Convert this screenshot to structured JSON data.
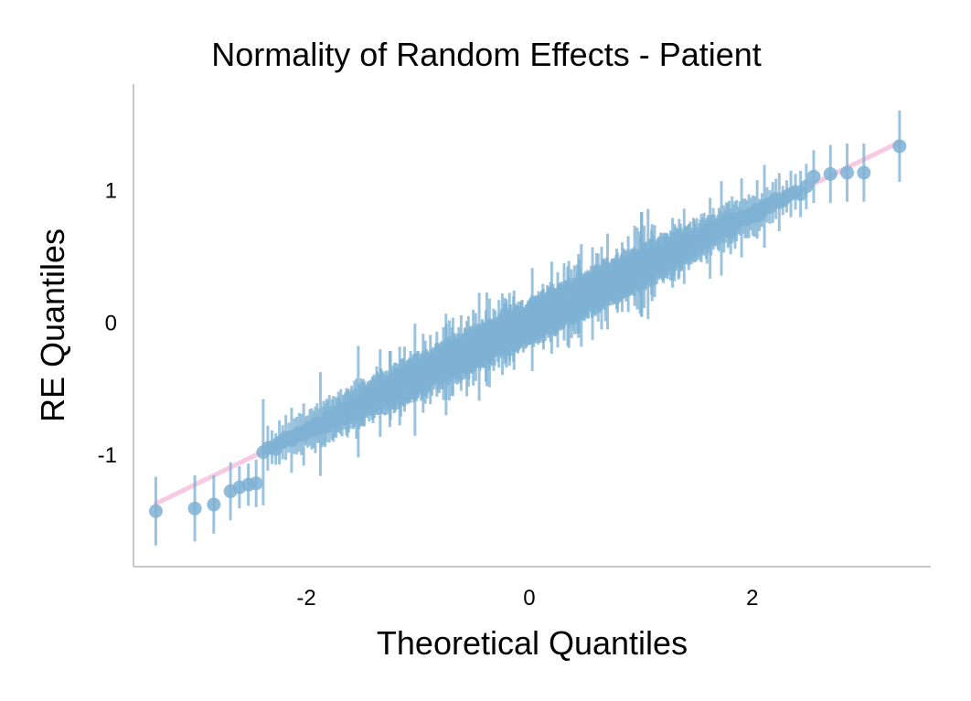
{
  "chart_data": {
    "type": "scatter",
    "title": "Normality of Random Effects - Patient",
    "xlabel": "Theoretical Quantiles",
    "ylabel": "RE Quantiles",
    "xlim": [
      -3.55,
      3.6
    ],
    "ylim": [
      -1.85,
      1.8
    ],
    "xticks": [
      -2,
      0,
      2
    ],
    "xtick_labels": [
      "-2",
      "0",
      "2"
    ],
    "yticks": [
      -1,
      0,
      1
    ],
    "ytick_labels": [
      "-1",
      "0",
      "1"
    ],
    "grid": false,
    "colors": {
      "points": "#7fb2d4",
      "errorbars": "#7fb2d4",
      "reference_line": "#f9c8e2",
      "axis": "#c8c8c8"
    },
    "reference_line": {
      "slope": 0.41,
      "intercept": 0.0,
      "x_range": [
        -3.35,
        3.32
      ]
    },
    "n_points": 1000,
    "highlighted_points": [
      {
        "x": -3.35,
        "y": -1.43,
        "err": 0.26
      },
      {
        "x": -3.0,
        "y": -1.41,
        "err": 0.25
      },
      {
        "x": -2.83,
        "y": -1.38,
        "err": 0.22
      },
      {
        "x": -2.68,
        "y": -1.28,
        "err": 0.22
      },
      {
        "x": -2.6,
        "y": -1.25,
        "err": 0.16
      },
      {
        "x": -2.52,
        "y": -1.23,
        "err": 0.16
      },
      {
        "x": -2.45,
        "y": -1.22,
        "err": 0.18
      },
      {
        "x": 2.55,
        "y": 1.1,
        "err": 0.2
      },
      {
        "x": 2.7,
        "y": 1.12,
        "err": 0.22
      },
      {
        "x": 2.85,
        "y": 1.13,
        "err": 0.22
      },
      {
        "x": 3.0,
        "y": 1.13,
        "err": 0.22
      },
      {
        "x": 3.32,
        "y": 1.33,
        "err": 0.27
      }
    ]
  }
}
